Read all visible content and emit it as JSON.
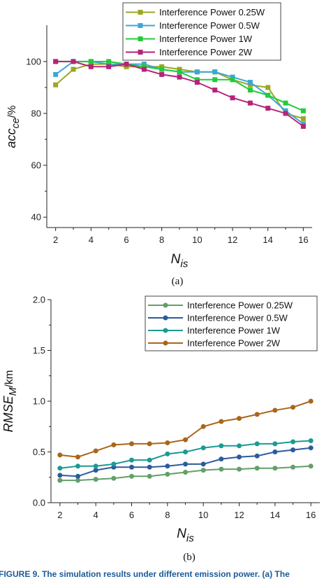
{
  "chart_data": [
    {
      "type": "line",
      "panel_label": "(a)",
      "xlabel": "N_is",
      "ylabel": "acc_ce/%",
      "xlim": [
        1.5,
        16.5
      ],
      "ylim": [
        36,
        114
      ],
      "xticks": [
        2,
        4,
        6,
        8,
        10,
        12,
        14,
        16
      ],
      "yticks": [
        40,
        60,
        80,
        100
      ],
      "marker": "square",
      "legend_position": "top-center",
      "x": [
        2,
        3,
        4,
        5,
        6,
        7,
        8,
        9,
        10,
        11,
        12,
        13,
        14,
        15,
        16
      ],
      "series": [
        {
          "name": "Interference Power 0.25W",
          "color": "#9ea622",
          "values": [
            91,
            97,
            99,
            99,
            98,
            98,
            98,
            97,
            96,
            96,
            93,
            91,
            90,
            80,
            78
          ]
        },
        {
          "name": "Interference Power 0.5W",
          "color": "#39a8d8",
          "values": [
            95,
            100,
            100,
            99,
            99,
            99,
            97,
            96,
            96,
            96,
            94,
            92,
            87,
            81,
            76
          ]
        },
        {
          "name": "Interference Power 1W",
          "color": "#20cc3a",
          "values": [
            100,
            100,
            100,
            100,
            99,
            98,
            97,
            96,
            93,
            93,
            93,
            89,
            87,
            84,
            81
          ]
        },
        {
          "name": "Interference Power 2W",
          "color": "#b5247a",
          "values": [
            100,
            100,
            98,
            98,
            99,
            97,
            95,
            94,
            92,
            89,
            86,
            84,
            82,
            80,
            75
          ]
        }
      ]
    },
    {
      "type": "line",
      "panel_label": "(b)",
      "xlabel": "N_is",
      "ylabel": "RMSE_M/km",
      "xlim": [
        1.5,
        16.5
      ],
      "ylim": [
        0.0,
        2.0
      ],
      "xticks": [
        2,
        4,
        6,
        8,
        10,
        12,
        14,
        16
      ],
      "yticks": [
        0.0,
        0.5,
        1.0,
        1.5,
        2.0
      ],
      "ytick_labels": [
        "0.0",
        "0.5",
        "1.0",
        "1.5",
        "2.0"
      ],
      "marker": "circle",
      "legend_position": "top-right",
      "x": [
        2,
        3,
        4,
        5,
        6,
        7,
        8,
        9,
        10,
        11,
        12,
        13,
        14,
        15,
        16
      ],
      "series": [
        {
          "name": "Interference Power 0.25W",
          "color": "#62a068",
          "values": [
            0.22,
            0.22,
            0.23,
            0.24,
            0.26,
            0.26,
            0.28,
            0.3,
            0.32,
            0.33,
            0.33,
            0.34,
            0.34,
            0.35,
            0.36
          ]
        },
        {
          "name": "Interference Power 0.5W",
          "color": "#2e5a9c",
          "values": [
            0.27,
            0.26,
            0.32,
            0.35,
            0.35,
            0.35,
            0.36,
            0.38,
            0.38,
            0.43,
            0.45,
            0.46,
            0.5,
            0.52,
            0.54
          ]
        },
        {
          "name": "Interference Power 1W",
          "color": "#1a9b94",
          "values": [
            0.34,
            0.36,
            0.36,
            0.38,
            0.42,
            0.42,
            0.48,
            0.5,
            0.54,
            0.56,
            0.56,
            0.58,
            0.58,
            0.6,
            0.61
          ]
        },
        {
          "name": "Interference Power 2W",
          "color": "#a8661a",
          "values": [
            0.47,
            0.45,
            0.51,
            0.57,
            0.58,
            0.58,
            0.59,
            0.62,
            0.75,
            0.8,
            0.83,
            0.87,
            0.91,
            0.94,
            1.0
          ]
        }
      ]
    }
  ],
  "caption": "FIGURE 9.  The simulation results under different emission power. (a) The"
}
